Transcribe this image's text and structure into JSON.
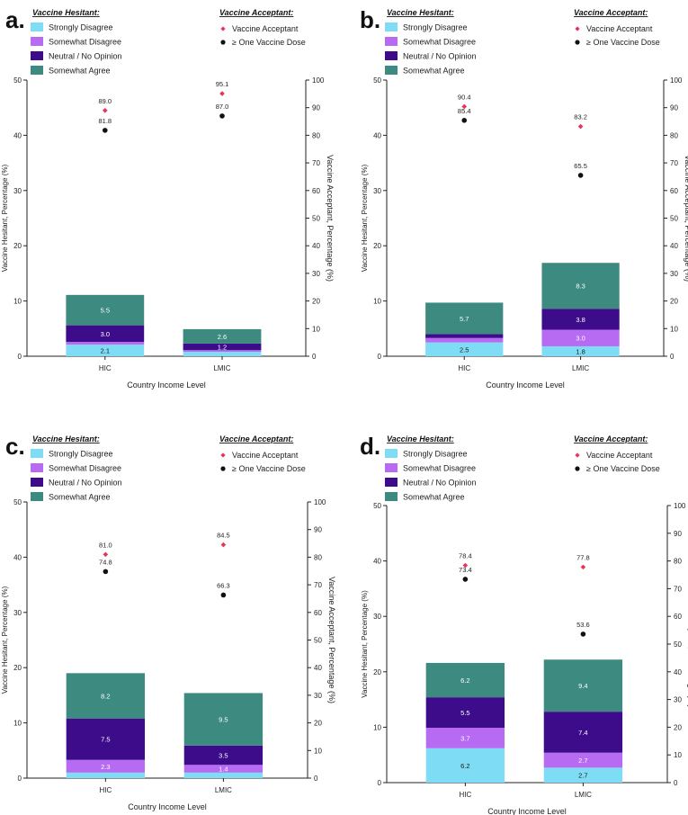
{
  "figure": {
    "x_label": "Country Income Level"
  },
  "legend": {
    "hesitant_title": "Vaccine Hesitant:",
    "acceptant_title": "Vaccine Acceptant:",
    "hesitant_items": [
      {
        "label": "Strongly Disagree",
        "color": "#7fdcf5"
      },
      {
        "label": "Somewhat Disagree",
        "color": "#b66bf2"
      },
      {
        "label": "Neutral / No Opinion",
        "color": "#3d0c8a"
      },
      {
        "label": "Somewhat Agree",
        "color": "#3d8a80"
      }
    ],
    "acceptant_items": [
      {
        "label": "Vaccine Acceptant",
        "marker": "diamond",
        "color": "#e8335a"
      },
      {
        "label": "≥ One Vaccine Dose",
        "marker": "circle",
        "color": "#111111"
      }
    ]
  },
  "chart_data": [
    {
      "type": "bar",
      "panel_label": "a.",
      "categories": [
        "HIC",
        "LMIC"
      ],
      "stack_order": [
        "Strongly Disagree",
        "Somewhat Disagree",
        "Neutral / No Opinion",
        "Somewhat Agree"
      ],
      "series": [
        {
          "name": "Strongly Disagree",
          "values": [
            2.1,
            0.8
          ]
        },
        {
          "name": "Somewhat Disagree",
          "values": [
            0.5,
            0.3
          ]
        },
        {
          "name": "Neutral / No Opinion",
          "values": [
            3.0,
            1.2
          ]
        },
        {
          "name": "Somewhat Agree",
          "values": [
            5.5,
            2.6
          ]
        }
      ],
      "bar_labels": [
        {
          "category": "HIC",
          "series": "Strongly Disagree",
          "text": "2.1"
        },
        {
          "category": "HIC",
          "series": "Neutral / No Opinion",
          "text": "3.0"
        },
        {
          "category": "HIC",
          "series": "Somewhat Agree",
          "text": "5.5"
        },
        {
          "category": "LMIC",
          "series": "Neutral / No Opinion",
          "text": "1.2"
        },
        {
          "category": "LMIC",
          "series": "Somewhat Agree",
          "text": "2.6"
        }
      ],
      "points": [
        {
          "name": "Vaccine Acceptant",
          "marker": "diamond",
          "values": [
            89.0,
            95.1
          ],
          "labels": [
            "89.0",
            "95.1"
          ]
        },
        {
          "name": "≥ One Vaccine Dose",
          "marker": "circle",
          "values": [
            81.8,
            87.0
          ],
          "labels": [
            "81.8",
            "87.0"
          ]
        }
      ],
      "ylabel": "Vaccine Hesitant, Percentage (%)",
      "y2label": "Vaccine Acceptant, Percentage (%)",
      "xlabel": "Country Income Level",
      "ylim": [
        0,
        50
      ],
      "y2lim": [
        0,
        100
      ],
      "yticks": [
        0,
        10,
        20,
        30,
        40,
        50
      ],
      "y2ticks": [
        0,
        10,
        20,
        30,
        40,
        50,
        60,
        70,
        80,
        90,
        100
      ]
    },
    {
      "type": "bar",
      "panel_label": "b.",
      "categories": [
        "HIC",
        "LMIC"
      ],
      "stack_order": [
        "Strongly Disagree",
        "Somewhat Disagree",
        "Neutral / No Opinion",
        "Somewhat Agree"
      ],
      "series": [
        {
          "name": "Strongly Disagree",
          "values": [
            2.5,
            1.8
          ]
        },
        {
          "name": "Somewhat Disagree",
          "values": [
            0.8,
            3.0
          ]
        },
        {
          "name": "Neutral / No Opinion",
          "values": [
            0.7,
            3.8
          ]
        },
        {
          "name": "Somewhat Agree",
          "values": [
            5.7,
            8.3
          ]
        }
      ],
      "bar_labels": [
        {
          "category": "HIC",
          "series": "Strongly Disagree",
          "text": "2.5"
        },
        {
          "category": "HIC",
          "series": "Somewhat Agree",
          "text": "5.7"
        },
        {
          "category": "LMIC",
          "series": "Strongly Disagree",
          "text": "1.8"
        },
        {
          "category": "LMIC",
          "series": "Somewhat Disagree",
          "text": "3.0"
        },
        {
          "category": "LMIC",
          "series": "Neutral / No Opinion",
          "text": "3.8"
        },
        {
          "category": "LMIC",
          "series": "Somewhat Agree",
          "text": "8.3"
        }
      ],
      "points": [
        {
          "name": "Vaccine Acceptant",
          "marker": "diamond",
          "values": [
            90.4,
            83.2
          ],
          "labels": [
            "90.4",
            "83.2"
          ]
        },
        {
          "name": "≥ One Vaccine Dose",
          "marker": "circle",
          "values": [
            85.4,
            65.5
          ],
          "labels": [
            "85.4",
            "65.5"
          ]
        }
      ],
      "ylabel": "Vaccine Hesitant, Percentage (%)",
      "y2label": "Vaccine Acceptant, Percentage (%)",
      "xlabel": "Country Income Level",
      "ylim": [
        0,
        50
      ],
      "y2lim": [
        0,
        100
      ],
      "yticks": [
        0,
        10,
        20,
        30,
        40,
        50
      ],
      "y2ticks": [
        0,
        10,
        20,
        30,
        40,
        50,
        60,
        70,
        80,
        90,
        100
      ]
    },
    {
      "type": "bar",
      "panel_label": "c.",
      "categories": [
        "HIC",
        "LMIC"
      ],
      "stack_order": [
        "Strongly Disagree",
        "Somewhat Disagree",
        "Neutral / No Opinion",
        "Somewhat Agree"
      ],
      "series": [
        {
          "name": "Strongly Disagree",
          "values": [
            1.0,
            1.0
          ]
        },
        {
          "name": "Somewhat Disagree",
          "values": [
            2.3,
            1.4
          ]
        },
        {
          "name": "Neutral / No Opinion",
          "values": [
            7.5,
            3.5
          ]
        },
        {
          "name": "Somewhat Agree",
          "values": [
            8.2,
            9.5
          ]
        }
      ],
      "bar_labels": [
        {
          "category": "HIC",
          "series": "Somewhat Disagree",
          "text": "2.3"
        },
        {
          "category": "HIC",
          "series": "Neutral / No Opinion",
          "text": "7.5"
        },
        {
          "category": "HIC",
          "series": "Somewhat Agree",
          "text": "8.2"
        },
        {
          "category": "LMIC",
          "series": "Somewhat Disagree",
          "text": "1.4"
        },
        {
          "category": "LMIC",
          "series": "Neutral / No Opinion",
          "text": "3.5"
        },
        {
          "category": "LMIC",
          "series": "Somewhat Agree",
          "text": "9.5"
        }
      ],
      "points": [
        {
          "name": "Vaccine Acceptant",
          "marker": "diamond",
          "values": [
            81.0,
            84.5
          ],
          "labels": [
            "81.0",
            "84.5"
          ]
        },
        {
          "name": "≥ One Vaccine Dose",
          "marker": "circle",
          "values": [
            74.8,
            66.3
          ],
          "labels": [
            "74.8",
            "66.3"
          ]
        }
      ],
      "ylabel": "Vaccine Hesitant, Percentage (%)",
      "y2label": "Vaccine Acceptant, Percentage (%)",
      "xlabel": "Country Income Level",
      "ylim": [
        0,
        50
      ],
      "y2lim": [
        0,
        100
      ],
      "yticks": [
        0,
        10,
        20,
        30,
        40,
        50
      ],
      "y2ticks": [
        0,
        10,
        20,
        30,
        40,
        50,
        60,
        70,
        80,
        90,
        100
      ]
    },
    {
      "type": "bar",
      "panel_label": "d.",
      "categories": [
        "HIC",
        "LMIC"
      ],
      "stack_order": [
        "Strongly Disagree",
        "Somewhat Disagree",
        "Neutral / No Opinion",
        "Somewhat Agree"
      ],
      "series": [
        {
          "name": "Strongly Disagree",
          "values": [
            6.2,
            2.7
          ]
        },
        {
          "name": "Somewhat Disagree",
          "values": [
            3.7,
            2.7
          ]
        },
        {
          "name": "Neutral / No Opinion",
          "values": [
            5.5,
            7.4
          ]
        },
        {
          "name": "Somewhat Agree",
          "values": [
            6.2,
            9.4
          ]
        }
      ],
      "bar_labels": [
        {
          "category": "HIC",
          "series": "Strongly Disagree",
          "text": "6.2"
        },
        {
          "category": "HIC",
          "series": "Somewhat Disagree",
          "text": "3.7"
        },
        {
          "category": "HIC",
          "series": "Neutral / No Opinion",
          "text": "5.5"
        },
        {
          "category": "HIC",
          "series": "Somewhat Agree",
          "text": "6.2"
        },
        {
          "category": "LMIC",
          "series": "Strongly Disagree",
          "text": "2.7"
        },
        {
          "category": "LMIC",
          "series": "Somewhat Disagree",
          "text": "2.7"
        },
        {
          "category": "LMIC",
          "series": "Neutral / No Opinion",
          "text": "7.4"
        },
        {
          "category": "LMIC",
          "series": "Somewhat Agree",
          "text": "9.4"
        }
      ],
      "points": [
        {
          "name": "Vaccine Acceptant",
          "marker": "diamond",
          "values": [
            78.4,
            77.8
          ],
          "labels": [
            "78.4",
            "77.8"
          ]
        },
        {
          "name": "≥ One Vaccine Dose",
          "marker": "circle",
          "values": [
            73.4,
            53.6
          ],
          "labels": [
            "73.4",
            "53.6"
          ]
        }
      ],
      "ylabel": "Vaccine Hesitant, Percentage (%)",
      "y2label": "Vaccine Acceptant, Percentage (%)",
      "xlabel": "Country Income Level",
      "ylim": [
        0,
        50
      ],
      "y2lim": [
        0,
        100
      ],
      "yticks": [
        0,
        10,
        20,
        30,
        40,
        50
      ],
      "y2ticks": [
        0,
        10,
        20,
        30,
        40,
        50,
        60,
        70,
        80,
        90,
        100
      ]
    }
  ]
}
